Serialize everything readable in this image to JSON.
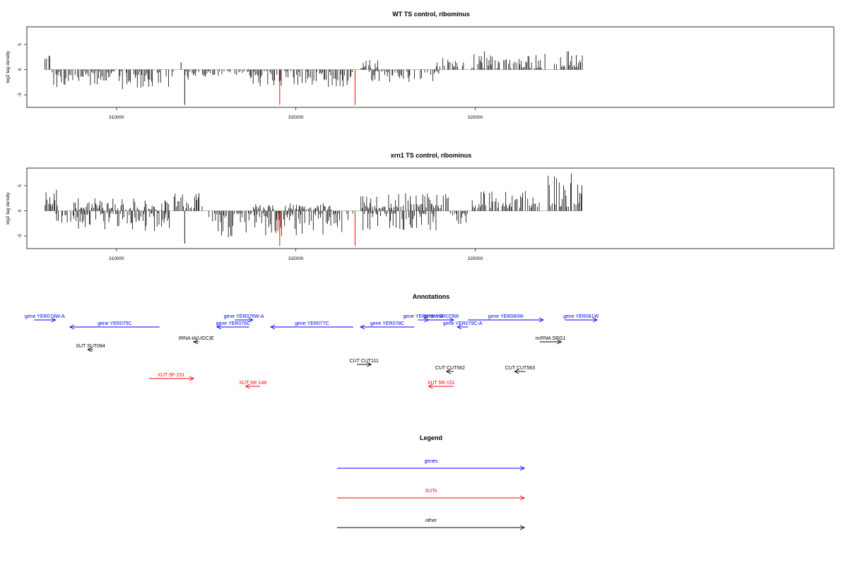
{
  "colors": {
    "black": "#000000",
    "red": "#ff0000",
    "blue": "#0000ff"
  },
  "chart_data": [
    {
      "type": "bar",
      "title": "WT TS control, ribominus",
      "ylabel": "log2 tag density",
      "xlim": [
        307500,
        330000
      ],
      "ylim": [
        -7.5,
        8.5
      ],
      "xticks": [
        310000,
        315000,
        320000
      ],
      "xtick_labels": [
        "310000",
        "315000",
        "320000"
      ],
      "yticks": [
        -5,
        0,
        5
      ],
      "ytick_labels": [
        "-5",
        "0",
        "5"
      ],
      "red_spikes": [
        {
          "x": 314550,
          "y": -7
        },
        {
          "x": 316650,
          "y": -7
        }
      ],
      "segments": [
        {
          "x0": 308000,
          "x1": 308200,
          "min": 1,
          "max": 3.5,
          "sign": 1
        },
        {
          "x0": 308200,
          "x1": 311600,
          "min": 0.3,
          "max": 4,
          "sign": -1
        },
        {
          "x0": 311900,
          "x1": 312700,
          "min": 0.3,
          "max": 2,
          "sign": -1
        },
        {
          "x0": 312700,
          "x1": 313700,
          "min": 0.3,
          "max": 1.5,
          "sign": -1
        },
        {
          "x0": 313700,
          "x1": 316600,
          "min": 0.3,
          "max": 3.5,
          "sign": -1
        },
        {
          "x0": 316800,
          "x1": 317300,
          "min": 0.3,
          "max": 2,
          "sign": 1
        },
        {
          "x0": 317000,
          "x1": 319000,
          "min": 0.3,
          "max": 3,
          "sign": -1
        },
        {
          "x0": 318900,
          "x1": 319700,
          "min": 0.5,
          "max": 2.5,
          "sign": 1
        },
        {
          "x0": 319900,
          "x1": 322000,
          "min": 0.3,
          "max": 4,
          "sign": 1
        },
        {
          "x0": 322200,
          "x1": 323000,
          "min": 0.5,
          "max": 4,
          "sign": 1
        }
      ],
      "spikes": [
        {
          "x": 311800,
          "y": 1.5
        },
        {
          "x": 311900,
          "y": -7
        }
      ]
    },
    {
      "type": "bar",
      "title": "xrn1 TS control, ribominus",
      "ylabel": "log2 tag density",
      "xlim": [
        307500,
        330000
      ],
      "ylim": [
        -7.5,
        8.5
      ],
      "xticks": [
        310000,
        315000,
        320000
      ],
      "xtick_labels": [
        "310000",
        "315000",
        "320000"
      ],
      "yticks": [
        -5,
        0,
        5
      ],
      "ytick_labels": [
        "-5",
        "0",
        "5"
      ],
      "red_spikes": [
        {
          "x": 314550,
          "y": -7
        },
        {
          "x": 314500,
          "y": -4
        },
        {
          "x": 314600,
          "y": -5
        },
        {
          "x": 316650,
          "y": -7
        }
      ],
      "segments": [
        {
          "x0": 308000,
          "x1": 308400,
          "min": 1,
          "max": 4.5,
          "sign": 1
        },
        {
          "x0": 308200,
          "x1": 311500,
          "min": 0.5,
          "max": 4,
          "sign": -1
        },
        {
          "x0": 308800,
          "x1": 311500,
          "min": 0.3,
          "max": 2.5,
          "sign": 1
        },
        {
          "x0": 311600,
          "x1": 312400,
          "min": 0.5,
          "max": 3.5,
          "sign": 1
        },
        {
          "x0": 312500,
          "x1": 314400,
          "min": 0.5,
          "max": 5.5,
          "sign": -1
        },
        {
          "x0": 313800,
          "x1": 314400,
          "min": 0.3,
          "max": 1.5,
          "sign": 1
        },
        {
          "x0": 314400,
          "x1": 316600,
          "min": 0.5,
          "max": 5,
          "sign": -1
        },
        {
          "x0": 314700,
          "x1": 316000,
          "min": 0.3,
          "max": 1.5,
          "sign": 1
        },
        {
          "x0": 316800,
          "x1": 319000,
          "min": 0.5,
          "max": 4,
          "sign": -1
        },
        {
          "x0": 316800,
          "x1": 319300,
          "min": 0.5,
          "max": 3.5,
          "sign": 1
        },
        {
          "x0": 319300,
          "x1": 319800,
          "min": 0.5,
          "max": 3,
          "sign": -1
        },
        {
          "x0": 319900,
          "x1": 321800,
          "min": 0.5,
          "max": 4,
          "sign": 1
        },
        {
          "x0": 322000,
          "x1": 323000,
          "min": 0.8,
          "max": 8,
          "sign": 1
        }
      ],
      "spikes": [
        {
          "x": 311900,
          "y": -6.5
        },
        {
          "x": 312300,
          "y": 3.5
        }
      ]
    }
  ],
  "annotations": {
    "title": "Annotations",
    "x_range": [
      307500,
      330000
    ],
    "features": [
      {
        "label": "gene YER074W-A",
        "color": "#0000ff",
        "start": 307700,
        "end": 308300,
        "dir": 1,
        "row": 0
      },
      {
        "label": "gene YER075C",
        "color": "#0000ff",
        "start": 308700,
        "end": 311200,
        "dir": -1,
        "row": 1
      },
      {
        "label": "gene YER076W-A",
        "color": "#0000ff",
        "start": 313300,
        "end": 313800,
        "dir": 1,
        "row": 0
      },
      {
        "label": "gene YER076C",
        "color": "#0000ff",
        "start": 312800,
        "end": 313700,
        "dir": -1,
        "row": 1
      },
      {
        "label": "gene YER077C",
        "color": "#0000ff",
        "start": 314300,
        "end": 316600,
        "dir": -1,
        "row": 1
      },
      {
        "label": "gene YER078C",
        "color": "#0000ff",
        "start": 316800,
        "end": 318300,
        "dir": -1,
        "row": 1
      },
      {
        "label": "gene YER078W-A",
        "color": "#0000ff",
        "start": 318400,
        "end": 318700,
        "dir": 1,
        "row": 0
      },
      {
        "label": "gene YER079W",
        "color": "#0000ff",
        "start": 318700,
        "end": 319400,
        "dir": 1,
        "row": 0
      },
      {
        "label": "gene YER079C-A",
        "color": "#0000ff",
        "start": 319500,
        "end": 319800,
        "dir": -1,
        "row": 1
      },
      {
        "label": "gene YER080W",
        "color": "#0000ff",
        "start": 319800,
        "end": 321900,
        "dir": 1,
        "row": 0
      },
      {
        "label": "gene YER081W",
        "color": "#0000ff",
        "start": 322500,
        "end": 323400,
        "dir": 1,
        "row": 0
      },
      {
        "label": "tRNA tA(UGC)E",
        "color": "#000000",
        "start": 312150,
        "end": 312300,
        "dir": -1,
        "row": 2
      },
      {
        "label": "ncRNA SRG1",
        "color": "#000000",
        "start": 321800,
        "end": 322400,
        "dir": 1,
        "row": 2
      },
      {
        "label": "SUT SUT094",
        "color": "#000000",
        "start": 309200,
        "end": 309350,
        "dir": -1,
        "row": 3
      },
      {
        "label": "CUT CUT111",
        "color": "#000000",
        "start": 316700,
        "end": 317100,
        "dir": 1,
        "row": 4
      },
      {
        "label": "CUT CUT562",
        "color": "#000000",
        "start": 319200,
        "end": 319400,
        "dir": -1,
        "row": 5
      },
      {
        "label": "CUT CUT563",
        "color": "#000000",
        "start": 321100,
        "end": 321400,
        "dir": -1,
        "row": 5
      },
      {
        "label": "XUT 5F-151",
        "color": "#ff0000",
        "start": 310900,
        "end": 312150,
        "dir": 1,
        "row": 6
      },
      {
        "label": "XUT 5R-148",
        "color": "#ff0000",
        "start": 313600,
        "end": 314000,
        "dir": -1,
        "row": 7
      },
      {
        "label": "XUT 5R-151",
        "color": "#ff0000",
        "start": 318700,
        "end": 319400,
        "dir": -1,
        "row": 7
      }
    ]
  },
  "legend": {
    "title": "Legend",
    "items": [
      {
        "label": "genes",
        "color": "#0000ff"
      },
      {
        "label": "XUTs",
        "color": "#ff0000"
      },
      {
        "label": "other",
        "color": "#000000"
      }
    ]
  }
}
